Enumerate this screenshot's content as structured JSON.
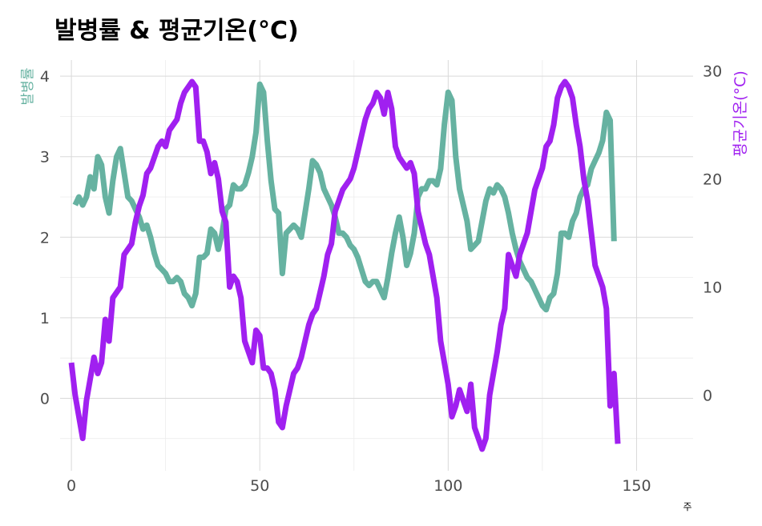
{
  "chart_data": {
    "type": "line",
    "title": "발병률 & 평균기온(°C)",
    "xlabel": "주",
    "ylabel_left": "발병률",
    "ylabel_right": "평균기온(°C)",
    "xlim": [
      -3,
      165
    ],
    "x_ticks": [
      0,
      50,
      100,
      150
    ],
    "ylim_left": [
      -0.9,
      4.2
    ],
    "y_ticks_left": [
      0,
      1,
      2,
      3,
      4
    ],
    "ylim_right": [
      -7,
      31
    ],
    "y_ticks_right": [
      0,
      10,
      20,
      30
    ],
    "grid": true,
    "legend": "none",
    "colors": {
      "incidence": "#66b2a1",
      "temperature": "#a020f0",
      "right_axis_title": "#a020f0",
      "left_axis_title": "#66b2a1"
    },
    "series": [
      {
        "name": "발병률",
        "axis": "left",
        "color": "#66b2a1",
        "points": [
          [
            1,
            2.4
          ],
          [
            2,
            2.5
          ],
          [
            3,
            2.4
          ],
          [
            4,
            2.5
          ],
          [
            5,
            2.75
          ],
          [
            6,
            2.6
          ],
          [
            7,
            3.0
          ],
          [
            8,
            2.9
          ],
          [
            9,
            2.5
          ],
          [
            10,
            2.3
          ],
          [
            11,
            2.7
          ],
          [
            12,
            3.0
          ],
          [
            13,
            3.1
          ],
          [
            14,
            2.8
          ],
          [
            15,
            2.5
          ],
          [
            16,
            2.45
          ],
          [
            17,
            2.35
          ],
          [
            18,
            2.25
          ],
          [
            19,
            2.1
          ],
          [
            20,
            2.15
          ],
          [
            21,
            2.0
          ],
          [
            22,
            1.8
          ],
          [
            23,
            1.65
          ],
          [
            24,
            1.6
          ],
          [
            25,
            1.55
          ],
          [
            26,
            1.45
          ],
          [
            27,
            1.45
          ],
          [
            28,
            1.5
          ],
          [
            29,
            1.45
          ],
          [
            30,
            1.3
          ],
          [
            31,
            1.25
          ],
          [
            32,
            1.15
          ],
          [
            33,
            1.3
          ],
          [
            34,
            1.75
          ],
          [
            35,
            1.75
          ],
          [
            36,
            1.8
          ],
          [
            37,
            2.1
          ],
          [
            38,
            2.05
          ],
          [
            39,
            1.85
          ],
          [
            40,
            2.05
          ],
          [
            41,
            2.35
          ],
          [
            42,
            2.4
          ],
          [
            43,
            2.65
          ],
          [
            44,
            2.6
          ],
          [
            45,
            2.6
          ],
          [
            46,
            2.65
          ],
          [
            47,
            2.8
          ],
          [
            48,
            3.0
          ],
          [
            49,
            3.3
          ],
          [
            50,
            3.9
          ],
          [
            51,
            3.8
          ],
          [
            52,
            3.2
          ],
          [
            53,
            2.7
          ],
          [
            54,
            2.35
          ],
          [
            55,
            2.3
          ],
          [
            56,
            1.55
          ],
          [
            57,
            2.05
          ],
          [
            58,
            2.1
          ],
          [
            59,
            2.15
          ],
          [
            60,
            2.1
          ],
          [
            61,
            2.0
          ],
          [
            62,
            2.3
          ],
          [
            63,
            2.6
          ],
          [
            64,
            2.95
          ],
          [
            65,
            2.9
          ],
          [
            66,
            2.8
          ],
          [
            67,
            2.6
          ],
          [
            68,
            2.5
          ],
          [
            69,
            2.4
          ],
          [
            70,
            2.25
          ],
          [
            71,
            2.05
          ],
          [
            72,
            2.05
          ],
          [
            73,
            2.0
          ],
          [
            74,
            1.9
          ],
          [
            75,
            1.85
          ],
          [
            76,
            1.75
          ],
          [
            77,
            1.6
          ],
          [
            78,
            1.45
          ],
          [
            79,
            1.4
          ],
          [
            80,
            1.45
          ],
          [
            81,
            1.45
          ],
          [
            82,
            1.35
          ],
          [
            83,
            1.25
          ],
          [
            84,
            1.5
          ],
          [
            85,
            1.8
          ],
          [
            86,
            2.05
          ],
          [
            87,
            2.25
          ],
          [
            88,
            2.0
          ],
          [
            89,
            1.65
          ],
          [
            90,
            1.8
          ],
          [
            91,
            2.05
          ],
          [
            92,
            2.5
          ],
          [
            93,
            2.6
          ],
          [
            94,
            2.6
          ],
          [
            95,
            2.7
          ],
          [
            96,
            2.7
          ],
          [
            97,
            2.65
          ],
          [
            98,
            2.85
          ],
          [
            99,
            3.4
          ],
          [
            100,
            3.8
          ],
          [
            101,
            3.7
          ],
          [
            102,
            3.0
          ],
          [
            103,
            2.6
          ],
          [
            104,
            2.4
          ],
          [
            105,
            2.2
          ],
          [
            106,
            1.85
          ],
          [
            107,
            1.9
          ],
          [
            108,
            1.95
          ],
          [
            109,
            2.2
          ],
          [
            110,
            2.45
          ],
          [
            111,
            2.6
          ],
          [
            112,
            2.55
          ],
          [
            113,
            2.65
          ],
          [
            114,
            2.6
          ],
          [
            115,
            2.5
          ],
          [
            116,
            2.3
          ],
          [
            117,
            2.05
          ],
          [
            118,
            1.85
          ],
          [
            119,
            1.7
          ],
          [
            120,
            1.6
          ],
          [
            121,
            1.5
          ],
          [
            122,
            1.45
          ],
          [
            123,
            1.35
          ],
          [
            124,
            1.25
          ],
          [
            125,
            1.15
          ],
          [
            126,
            1.1
          ],
          [
            127,
            1.25
          ],
          [
            128,
            1.3
          ],
          [
            129,
            1.55
          ],
          [
            130,
            2.05
          ],
          [
            131,
            2.05
          ],
          [
            132,
            2.0
          ],
          [
            133,
            2.2
          ],
          [
            134,
            2.3
          ],
          [
            135,
            2.5
          ],
          [
            136,
            2.6
          ],
          [
            137,
            2.65
          ],
          [
            138,
            2.85
          ],
          [
            139,
            2.95
          ],
          [
            140,
            3.05
          ],
          [
            141,
            3.2
          ],
          [
            142,
            3.55
          ],
          [
            143,
            3.45
          ],
          [
            144,
            1.95
          ]
        ]
      },
      {
        "name": "평균기온(°C)",
        "axis": "right",
        "color": "#a020f0",
        "points": [
          [
            0,
            3
          ],
          [
            1,
            0
          ],
          [
            2,
            -2
          ],
          [
            3,
            -4
          ],
          [
            4,
            -0.5
          ],
          [
            5,
            1.5
          ],
          [
            6,
            3.5
          ],
          [
            7,
            2
          ],
          [
            8,
            3
          ],
          [
            9,
            7
          ],
          [
            10,
            5
          ],
          [
            11,
            9
          ],
          [
            12,
            9.5
          ],
          [
            13,
            10
          ],
          [
            14,
            13
          ],
          [
            15,
            13.5
          ],
          [
            16,
            14
          ],
          [
            17,
            16
          ],
          [
            18,
            17.5
          ],
          [
            19,
            18.5
          ],
          [
            20,
            20.5
          ],
          [
            21,
            21
          ],
          [
            22,
            22
          ],
          [
            23,
            23
          ],
          [
            24,
            23.5
          ],
          [
            25,
            23
          ],
          [
            26,
            24.5
          ],
          [
            27,
            25
          ],
          [
            28,
            25.5
          ],
          [
            29,
            27
          ],
          [
            30,
            28
          ],
          [
            31,
            28.5
          ],
          [
            32,
            29
          ],
          [
            33,
            28.5
          ],
          [
            34,
            23.5
          ],
          [
            35,
            23.5
          ],
          [
            36,
            22.5
          ],
          [
            37,
            20.5
          ],
          [
            38,
            21.5
          ],
          [
            39,
            20
          ],
          [
            40,
            17
          ],
          [
            41,
            16
          ],
          [
            42,
            10
          ],
          [
            43,
            11
          ],
          [
            44,
            10.5
          ],
          [
            45,
            9
          ],
          [
            46,
            5
          ],
          [
            47,
            4
          ],
          [
            48,
            3
          ],
          [
            49,
            6
          ],
          [
            50,
            5.5
          ],
          [
            51,
            2.5
          ],
          [
            52,
            2.5
          ],
          [
            53,
            2
          ],
          [
            54,
            0.5
          ],
          [
            55,
            -2.5
          ],
          [
            56,
            -3
          ],
          [
            57,
            -1
          ],
          [
            58,
            0.5
          ],
          [
            59,
            2
          ],
          [
            60,
            2.5
          ],
          [
            61,
            3.5
          ],
          [
            62,
            5
          ],
          [
            63,
            6.5
          ],
          [
            64,
            7.5
          ],
          [
            65,
            8
          ],
          [
            66,
            9.5
          ],
          [
            67,
            11
          ],
          [
            68,
            13
          ],
          [
            69,
            14
          ],
          [
            70,
            17
          ],
          [
            71,
            18
          ],
          [
            72,
            19
          ],
          [
            73,
            19.5
          ],
          [
            74,
            20
          ],
          [
            75,
            21
          ],
          [
            76,
            22.5
          ],
          [
            77,
            24
          ],
          [
            78,
            25.5
          ],
          [
            79,
            26.5
          ],
          [
            80,
            27
          ],
          [
            81,
            28
          ],
          [
            82,
            27.5
          ],
          [
            83,
            26
          ],
          [
            84,
            28
          ],
          [
            85,
            26.5
          ],
          [
            86,
            23
          ],
          [
            87,
            22
          ],
          [
            88,
            21.5
          ],
          [
            89,
            21
          ],
          [
            90,
            21.5
          ],
          [
            91,
            20.5
          ],
          [
            92,
            17
          ],
          [
            93,
            15.5
          ],
          [
            94,
            14
          ],
          [
            95,
            13
          ],
          [
            96,
            11
          ],
          [
            97,
            9
          ],
          [
            98,
            5
          ],
          [
            99,
            3
          ],
          [
            100,
            1
          ],
          [
            101,
            -2
          ],
          [
            102,
            -1
          ],
          [
            103,
            0.5
          ],
          [
            104,
            -0.5
          ],
          [
            105,
            -1.5
          ],
          [
            106,
            1
          ],
          [
            107,
            -3
          ],
          [
            108,
            -4
          ],
          [
            109,
            -5
          ],
          [
            110,
            -4
          ],
          [
            111,
            0
          ],
          [
            112,
            2
          ],
          [
            113,
            4
          ],
          [
            114,
            6.5
          ],
          [
            115,
            8
          ],
          [
            116,
            13
          ],
          [
            117,
            12
          ],
          [
            118,
            11
          ],
          [
            119,
            13
          ],
          [
            120,
            14
          ],
          [
            121,
            15
          ],
          [
            122,
            17
          ],
          [
            123,
            19
          ],
          [
            124,
            20
          ],
          [
            125,
            21
          ],
          [
            126,
            23
          ],
          [
            127,
            23.5
          ],
          [
            128,
            25
          ],
          [
            129,
            27.5
          ],
          [
            130,
            28.5
          ],
          [
            131,
            29
          ],
          [
            132,
            28.5
          ],
          [
            133,
            27.5
          ],
          [
            134,
            25
          ],
          [
            135,
            23
          ],
          [
            136,
            20
          ],
          [
            137,
            18
          ],
          [
            138,
            15
          ],
          [
            139,
            12
          ],
          [
            140,
            11
          ],
          [
            141,
            10
          ],
          [
            142,
            8
          ],
          [
            143,
            -1
          ],
          [
            144,
            2
          ],
          [
            145,
            -4.5
          ]
        ]
      }
    ]
  }
}
